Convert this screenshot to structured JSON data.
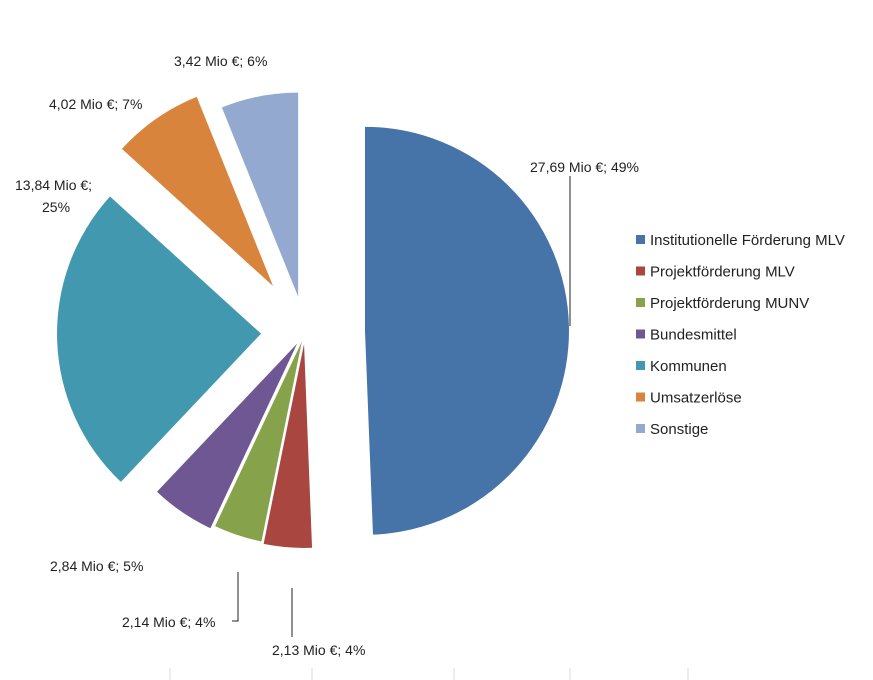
{
  "chart_data": {
    "type": "pie",
    "exploded": true,
    "legend_position": "right",
    "unit": "Mio €",
    "slices": [
      {
        "name": "Institutionelle Förderung MLV",
        "value": 27.69,
        "percent": 49,
        "label": "27,69 Mio €; 49%",
        "color": "#4673a8"
      },
      {
        "name": "Projektförderung MLV",
        "value": 2.13,
        "percent": 4,
        "label": "2,13 Mio €; 4%",
        "color": "#a8463f"
      },
      {
        "name": "Projektförderung MUNV",
        "value": 2.14,
        "percent": 4,
        "label": "2,14 Mio €; 4%",
        "color": "#86a34b"
      },
      {
        "name": "Bundesmittel",
        "value": 2.84,
        "percent": 5,
        "label": "2,84 Mio €; 5%",
        "color": "#6e5792"
      },
      {
        "name": "Kommunen",
        "value": 13.84,
        "percent": 25,
        "label_lines": [
          "13,84 Mio €;",
          "25%"
        ],
        "color": "#4298ae"
      },
      {
        "name": "Umsatzerlöse",
        "value": 4.02,
        "percent": 7,
        "label": "4,02 Mio €; 7%",
        "color": "#d9843d"
      },
      {
        "name": "Sonstige",
        "value": 3.42,
        "percent": 6,
        "label": "3,42 Mio €; 6%",
        "color": "#93a9d0"
      }
    ]
  }
}
